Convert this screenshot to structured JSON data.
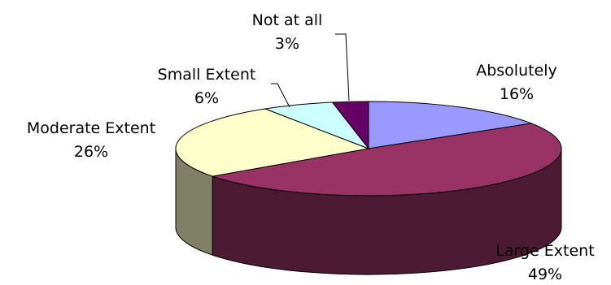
{
  "chart_data": {
    "type": "pie",
    "three_d": true,
    "title": "",
    "legend": "none",
    "start_angle_deg": -90,
    "direction": "clockwise",
    "slices": [
      {
        "label": "Absolutely",
        "value": 16,
        "value_text": "16%",
        "top_color": "#9999FF",
        "side_color": "#4D4D80"
      },
      {
        "label": "Large Extent",
        "value": 49,
        "value_text": "49%",
        "top_color": "#993366",
        "side_color": "#4D1A33"
      },
      {
        "label": "Moderate Extent",
        "value": 26,
        "value_text": "26%",
        "top_color": "#FFFFCC",
        "side_color": "#808066"
      },
      {
        "label": "Small Extent",
        "value": 6,
        "value_text": "6%",
        "top_color": "#CCFFFF",
        "side_color": "#668080"
      },
      {
        "label": "Not at all",
        "value": 3,
        "value_text": "3%",
        "top_color": "#660066",
        "side_color": "#330033"
      }
    ]
  }
}
